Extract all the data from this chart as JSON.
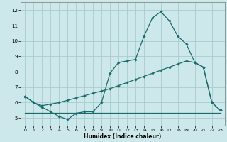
{
  "xlabel": "Humidex (Indice chaleur)",
  "bg_color": "#cce8ea",
  "grid_color": "#aacccc",
  "line_color": "#1a6b6b",
  "xlim": [
    -0.5,
    23.5
  ],
  "ylim": [
    4.5,
    12.5
  ],
  "yticks": [
    5,
    6,
    7,
    8,
    9,
    10,
    11,
    12
  ],
  "xticks": [
    0,
    1,
    2,
    3,
    4,
    5,
    6,
    7,
    8,
    9,
    10,
    11,
    12,
    13,
    14,
    15,
    16,
    17,
    18,
    19,
    20,
    21,
    22,
    23
  ],
  "line1_x": [
    0,
    1,
    2,
    3,
    4,
    5,
    6,
    7,
    8,
    9,
    10,
    11,
    12,
    13,
    14,
    15,
    16,
    17,
    18,
    19,
    20,
    21,
    22,
    23
  ],
  "line1_y": [
    6.4,
    6.0,
    5.7,
    5.4,
    5.1,
    4.9,
    5.3,
    5.4,
    5.4,
    6.0,
    7.9,
    8.6,
    8.7,
    8.8,
    10.3,
    11.5,
    11.9,
    11.3,
    10.3,
    9.8,
    8.6,
    8.3,
    6.0,
    5.5
  ],
  "line2_x": [
    0,
    1,
    2,
    3,
    4,
    5,
    6,
    7,
    8,
    9,
    10,
    11,
    12,
    13,
    14,
    15,
    16,
    17,
    18,
    19,
    20,
    21,
    22,
    23
  ],
  "line2_y": [
    6.4,
    6.0,
    5.8,
    5.9,
    6.0,
    6.15,
    6.3,
    6.45,
    6.6,
    6.75,
    6.9,
    7.1,
    7.3,
    7.5,
    7.7,
    7.9,
    8.1,
    8.3,
    8.5,
    8.7,
    8.6,
    8.3,
    6.0,
    5.5
  ],
  "line3_x": [
    0,
    1,
    2,
    3,
    4,
    5,
    6,
    7,
    8,
    9,
    10,
    11,
    12,
    13,
    14,
    15,
    16,
    17,
    18,
    19,
    20,
    21,
    22,
    23
  ],
  "line3_y": [
    5.35,
    5.35,
    5.35,
    5.35,
    5.35,
    5.35,
    5.35,
    5.35,
    5.35,
    5.35,
    5.35,
    5.35,
    5.35,
    5.35,
    5.35,
    5.35,
    5.35,
    5.35,
    5.35,
    5.35,
    5.35,
    5.35,
    5.35,
    5.35
  ]
}
